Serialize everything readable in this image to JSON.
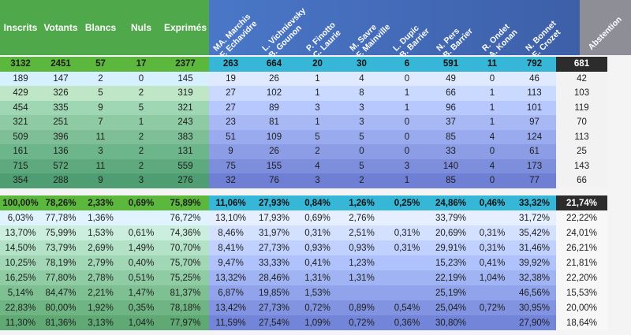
{
  "headers": {
    "left": [
      "Inscrits",
      "Votants",
      "Blancs",
      "Nuls",
      "Exprimés"
    ],
    "candidates": [
      [
        "MA. Marchis",
        "F. Echavidre"
      ],
      [
        "L. Vichnievsky",
        "B. Gounon"
      ],
      [
        "P. Finotto",
        "C. Laurie"
      ],
      [
        "M. Savre",
        "F. Mainville"
      ],
      [
        "L. Dupic",
        "B. Barrier"
      ],
      [
        "N. Pers",
        "B. Barrier"
      ],
      [
        "R. Ondet",
        "A. Konan"
      ],
      [
        "N. Bonnet",
        "E. Crozet"
      ]
    ],
    "abstention": "Abstention"
  },
  "counts": {
    "total": [
      "3132",
      "2451",
      "57",
      "17",
      "2377",
      "263",
      "664",
      "20",
      "30",
      "6",
      "591",
      "11",
      "792",
      "681"
    ],
    "rows": [
      [
        "189",
        "147",
        "2",
        "0",
        "145",
        "19",
        "26",
        "1",
        "4",
        "0",
        "49",
        "0",
        "46",
        "42"
      ],
      [
        "429",
        "326",
        "5",
        "2",
        "319",
        "27",
        "102",
        "1",
        "8",
        "1",
        "66",
        "1",
        "113",
        "103"
      ],
      [
        "454",
        "335",
        "9",
        "5",
        "321",
        "27",
        "89",
        "3",
        "3",
        "1",
        "96",
        "1",
        "101",
        "119"
      ],
      [
        "321",
        "251",
        "7",
        "1",
        "243",
        "23",
        "81",
        "1",
        "3",
        "0",
        "37",
        "1",
        "97",
        "70"
      ],
      [
        "509",
        "396",
        "11",
        "2",
        "383",
        "51",
        "109",
        "5",
        "5",
        "0",
        "85",
        "4",
        "124",
        "113"
      ],
      [
        "161",
        "136",
        "3",
        "2",
        "131",
        "9",
        "26",
        "2",
        "0",
        "0",
        "33",
        "0",
        "61",
        "25"
      ],
      [
        "715",
        "572",
        "11",
        "2",
        "559",
        "75",
        "155",
        "4",
        "5",
        "3",
        "140",
        "4",
        "173",
        "143"
      ],
      [
        "354",
        "288",
        "9",
        "3",
        "276",
        "32",
        "76",
        "3",
        "2",
        "1",
        "85",
        "0",
        "77",
        "66"
      ]
    ]
  },
  "percents": {
    "total": [
      "100,00%",
      "78,26%",
      "2,33%",
      "0,69%",
      "75,89%",
      "11,06%",
      "27,93%",
      "0,84%",
      "1,26%",
      "0,25%",
      "24,86%",
      "0,46%",
      "33,32%",
      "21,74%"
    ],
    "rows": [
      [
        "6,03%",
        "77,78%",
        "1,36%",
        "",
        "76,72%",
        "13,10%",
        "17,93%",
        "0,69%",
        "2,76%",
        "",
        "33,79%",
        "",
        "31,72%",
        "22,22%"
      ],
      [
        "13,70%",
        "75,99%",
        "1,53%",
        "0,61%",
        "74,36%",
        "8,46%",
        "31,97%",
        "0,31%",
        "2,51%",
        "0,31%",
        "20,69%",
        "0,31%",
        "35,42%",
        "24,01%"
      ],
      [
        "14,50%",
        "73,79%",
        "2,69%",
        "1,49%",
        "70,70%",
        "8,41%",
        "27,73%",
        "0,93%",
        "0,93%",
        "0,31%",
        "29,91%",
        "0,31%",
        "31,46%",
        "26,21%"
      ],
      [
        "10,25%",
        "78,19%",
        "2,79%",
        "0,40%",
        "75,70%",
        "9,47%",
        "33,33%",
        "0,41%",
        "1,23%",
        "",
        "15,23%",
        "0,41%",
        "39,92%",
        "21,81%"
      ],
      [
        "16,25%",
        "77,80%",
        "2,78%",
        "0,51%",
        "75,25%",
        "13,32%",
        "28,46%",
        "1,31%",
        "1,31%",
        "",
        "22,19%",
        "1,04%",
        "32,38%",
        "22,20%"
      ],
      [
        "5,14%",
        "84,47%",
        "2,21%",
        "1,47%",
        "81,37%",
        "6,87%",
        "19,85%",
        "1,53%",
        "",
        "",
        "25,19%",
        "",
        "46,56%",
        "15,53%"
      ],
      [
        "22,83%",
        "80,00%",
        "1,92%",
        "0,35%",
        "78,18%",
        "13,42%",
        "27,73%",
        "0,72%",
        "0,89%",
        "0,54%",
        "25,04%",
        "0,72%",
        "30,95%",
        "20,00%"
      ],
      [
        "11,30%",
        "81,36%",
        "3,13%",
        "1,04%",
        "77,97%",
        "11,59%",
        "27,54%",
        "1,09%",
        "0,72%",
        "0,36%",
        "30,80%",
        "",
        "27,90%",
        "18,64%"
      ]
    ]
  },
  "colors": {
    "header_green": "#4fa84a",
    "header_blue": "#4a77c8",
    "header_gray": "#8e8e96",
    "total_green": "#5cb83d",
    "total_blue": "#36b7d8",
    "total_dark": "#2c2c2c"
  }
}
